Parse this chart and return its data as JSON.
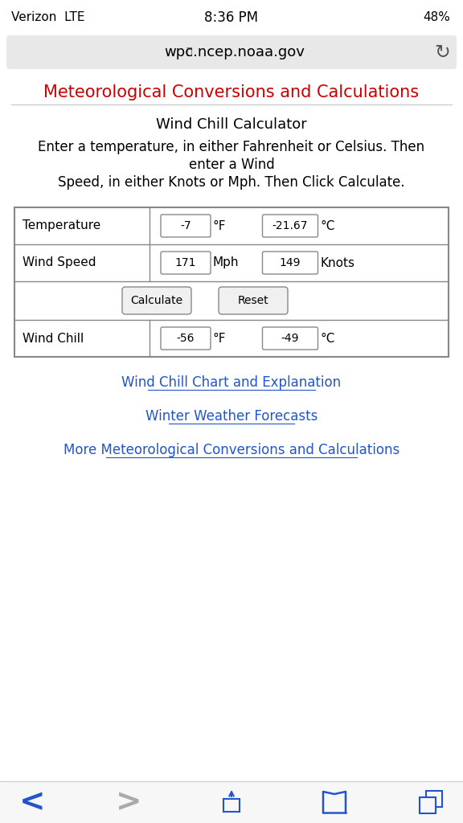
{
  "bg_color": "#ffffff",
  "status_bar": {
    "carrier": "Verizon  LTE",
    "time": "8:36 PM",
    "battery": "48%",
    "text_color": "#000000"
  },
  "url_bar": {
    "url": "wpc.ncep.noaa.gov",
    "bg": "#e8e8e8",
    "text_color": "#000000"
  },
  "page_title": {
    "text": "Meteorological Conversions and Calculations",
    "color": "#cc0000",
    "fontsize": 15
  },
  "divider_color": "#cccccc",
  "calc_title": "Wind Chill Calculator",
  "instructions": [
    "Enter a temperature, in either Fahrenheit or Celsius. Then",
    "enter a Wind",
    "Speed, in either Knots or Mph. Then Click Calculate."
  ],
  "table": {
    "border_color": "#888888",
    "rows": [
      {
        "label": "Temperature",
        "fields": [
          {
            "value": "-7",
            "unit": "°F"
          },
          {
            "value": "-21.67",
            "unit": "°C"
          }
        ]
      },
      {
        "label": "Wind Speed",
        "fields": [
          {
            "value": "171",
            "unit": "Mph"
          },
          {
            "value": "149",
            "unit": "Knots"
          }
        ]
      },
      {
        "label": "",
        "buttons": [
          "Calculate",
          "Reset"
        ]
      },
      {
        "label": "Wind Chill",
        "fields": [
          {
            "value": "-56",
            "unit": "°F"
          },
          {
            "value": "-49",
            "unit": "°C"
          }
        ]
      }
    ]
  },
  "links": [
    "Wind Chill Chart and Explanation",
    "Winter Weather Forecasts",
    "More Meteorological Conversions and Calculations"
  ],
  "link_color": "#2255cc",
  "nav_bar": {
    "bg": "#f7f7f7",
    "icon_color": "#2255cc",
    "disabled_color": "#aaaaaa"
  }
}
